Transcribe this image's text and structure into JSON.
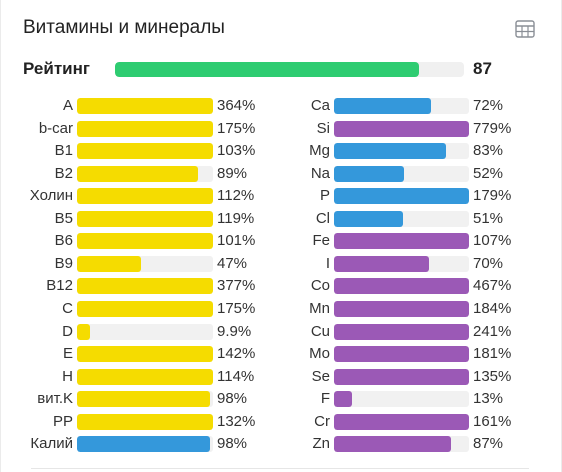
{
  "panel": {
    "title": "Витамины и минералы",
    "table_icon": "table-grid-icon"
  },
  "rating": {
    "label": "Рейтинг",
    "value": "87",
    "fraction": 0.87,
    "color": "#2ecc71"
  },
  "colors": {
    "vitamin": "#f5dc00",
    "mineral_blue": "#3498db",
    "mineral_purple": "#9b59b6",
    "track": "#f1f1f1"
  },
  "vitamins": [
    {
      "label": "A",
      "pct": "364%",
      "fill": 1.0,
      "color": "#f5dc00"
    },
    {
      "label": "b-car",
      "pct": "175%",
      "fill": 1.0,
      "color": "#f5dc00"
    },
    {
      "label": "B1",
      "pct": "103%",
      "fill": 1.0,
      "color": "#f5dc00"
    },
    {
      "label": "B2",
      "pct": "89%",
      "fill": 0.89,
      "color": "#f5dc00"
    },
    {
      "label": "Холин",
      "pct": "112%",
      "fill": 1.0,
      "color": "#f5dc00"
    },
    {
      "label": "B5",
      "pct": "119%",
      "fill": 1.0,
      "color": "#f5dc00"
    },
    {
      "label": "B6",
      "pct": "101%",
      "fill": 1.0,
      "color": "#f5dc00"
    },
    {
      "label": "B9",
      "pct": "47%",
      "fill": 0.47,
      "color": "#f5dc00"
    },
    {
      "label": "B12",
      "pct": "377%",
      "fill": 1.0,
      "color": "#f5dc00"
    },
    {
      "label": "C",
      "pct": "175%",
      "fill": 1.0,
      "color": "#f5dc00"
    },
    {
      "label": "D",
      "pct": "9.9%",
      "fill": 0.099,
      "color": "#f5dc00"
    },
    {
      "label": "E",
      "pct": "142%",
      "fill": 1.0,
      "color": "#f5dc00"
    },
    {
      "label": "H",
      "pct": "114%",
      "fill": 1.0,
      "color": "#f5dc00"
    },
    {
      "label": "вит.K",
      "pct": "98%",
      "fill": 0.98,
      "color": "#f5dc00"
    },
    {
      "label": "PP",
      "pct": "132%",
      "fill": 1.0,
      "color": "#f5dc00"
    },
    {
      "label": "Калий",
      "pct": "98%",
      "fill": 0.98,
      "color": "#3498db"
    }
  ],
  "minerals": [
    {
      "label": "Ca",
      "pct": "72%",
      "fill": 0.72,
      "color": "#3498db"
    },
    {
      "label": "Si",
      "pct": "779%",
      "fill": 1.0,
      "color": "#9b59b6"
    },
    {
      "label": "Mg",
      "pct": "83%",
      "fill": 0.83,
      "color": "#3498db"
    },
    {
      "label": "Na",
      "pct": "52%",
      "fill": 0.52,
      "color": "#3498db"
    },
    {
      "label": "P",
      "pct": "179%",
      "fill": 1.0,
      "color": "#3498db"
    },
    {
      "label": "Cl",
      "pct": "51%",
      "fill": 0.51,
      "color": "#3498db"
    },
    {
      "label": "Fe",
      "pct": "107%",
      "fill": 1.0,
      "color": "#9b59b6"
    },
    {
      "label": "I",
      "pct": "70%",
      "fill": 0.7,
      "color": "#9b59b6"
    },
    {
      "label": "Co",
      "pct": "467%",
      "fill": 1.0,
      "color": "#9b59b6"
    },
    {
      "label": "Mn",
      "pct": "184%",
      "fill": 1.0,
      "color": "#9b59b6"
    },
    {
      "label": "Cu",
      "pct": "241%",
      "fill": 1.0,
      "color": "#9b59b6"
    },
    {
      "label": "Mo",
      "pct": "181%",
      "fill": 1.0,
      "color": "#9b59b6"
    },
    {
      "label": "Se",
      "pct": "135%",
      "fill": 1.0,
      "color": "#9b59b6"
    },
    {
      "label": "F",
      "pct": "13%",
      "fill": 0.13,
      "color": "#9b59b6"
    },
    {
      "label": "Cr",
      "pct": "161%",
      "fill": 1.0,
      "color": "#9b59b6"
    },
    {
      "label": "Zn",
      "pct": "87%",
      "fill": 0.87,
      "color": "#9b59b6"
    }
  ]
}
